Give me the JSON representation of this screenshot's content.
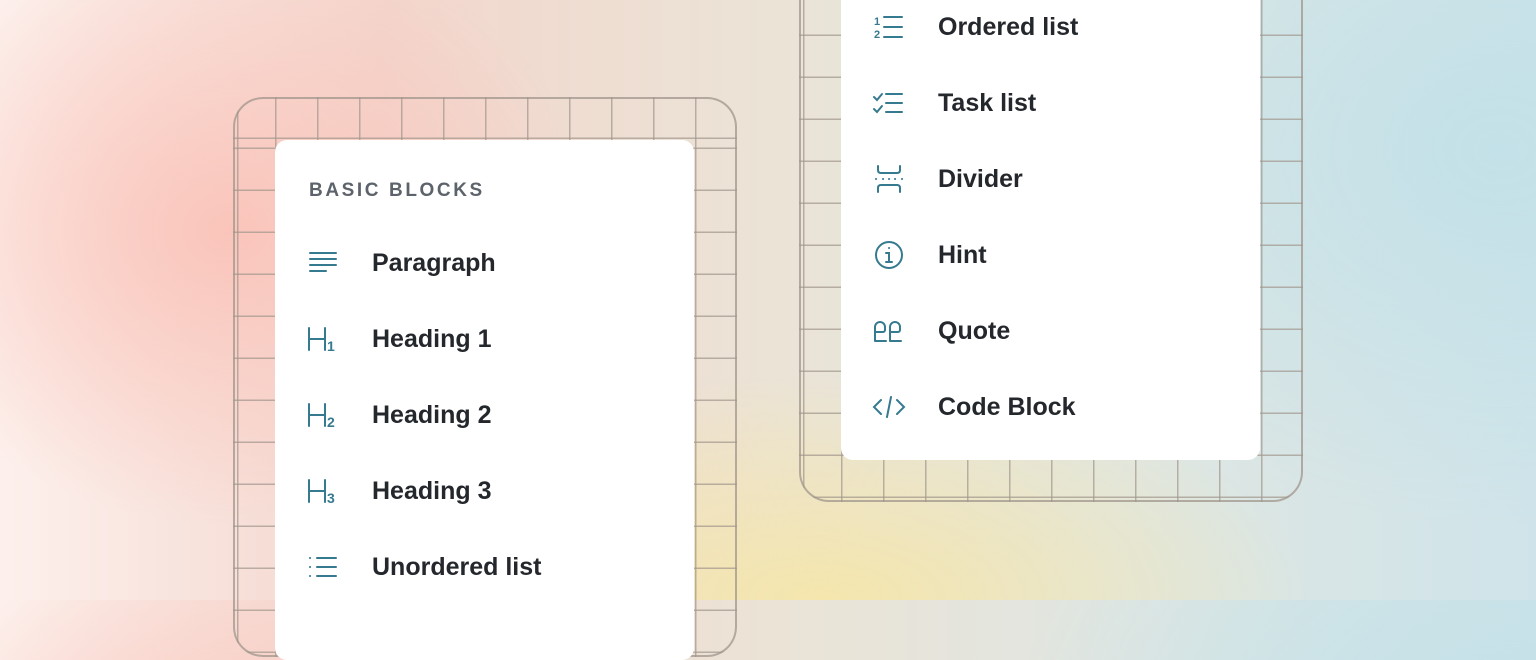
{
  "left_menu": {
    "header": "BASIC BLOCKS",
    "items": [
      {
        "label": "Paragraph",
        "icon": "paragraph-icon"
      },
      {
        "label": "Heading 1",
        "icon": "heading-1-icon"
      },
      {
        "label": "Heading 2",
        "icon": "heading-2-icon"
      },
      {
        "label": "Heading 3",
        "icon": "heading-3-icon"
      },
      {
        "label": "Unordered list",
        "icon": "unordered-list-icon"
      }
    ]
  },
  "right_menu": {
    "items": [
      {
        "label": "Ordered list",
        "icon": "ordered-list-icon"
      },
      {
        "label": "Task list",
        "icon": "task-list-icon"
      },
      {
        "label": "Divider",
        "icon": "divider-icon"
      },
      {
        "label": "Hint",
        "icon": "info-icon"
      },
      {
        "label": "Quote",
        "icon": "quote-icon"
      },
      {
        "label": "Code Block",
        "icon": "code-icon"
      }
    ]
  },
  "colors": {
    "icon": "#357a8f",
    "text": "#24272c",
    "header": "#5d636b"
  }
}
